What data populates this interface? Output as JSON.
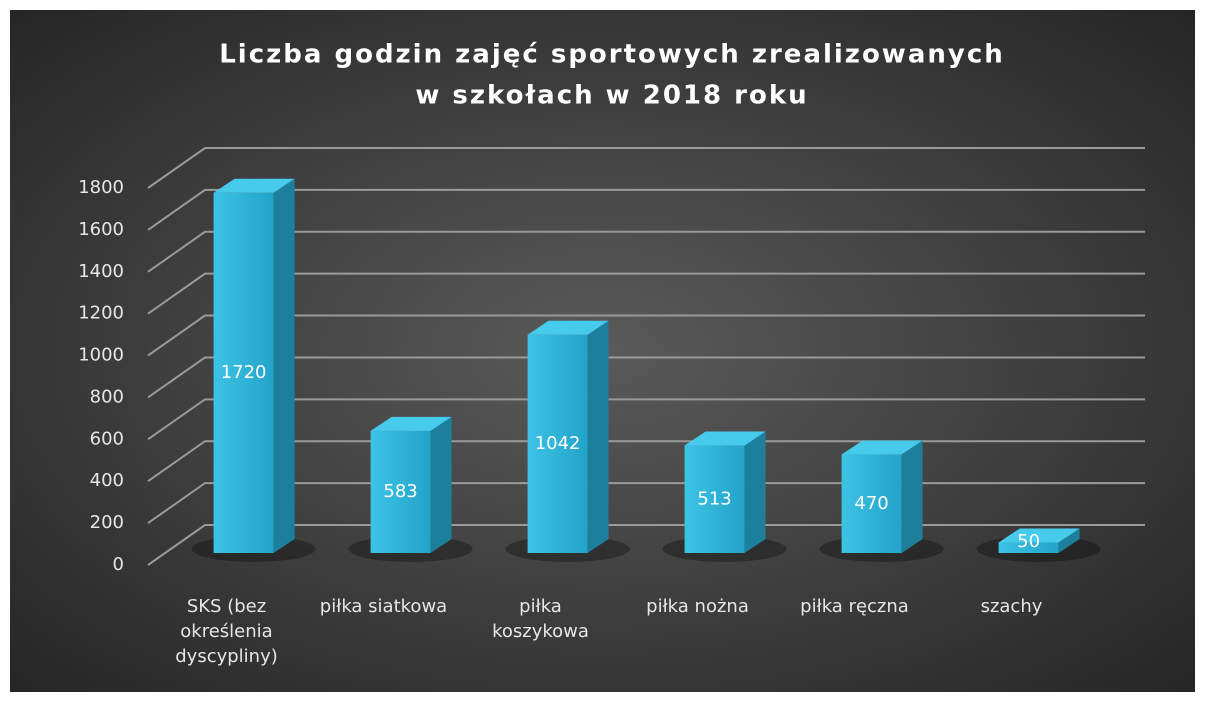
{
  "chart_data": {
    "type": "bar3d",
    "title": [
      "Liczba godzin zajęć sportowych zrealizowanych",
      "w szkołach w 2018 roku"
    ],
    "categories": [
      "SKS (bez określenia dyscypliny)",
      "piłka siatkowa",
      "piłka koszykowa",
      "piłka nożna",
      "piłka ręczna",
      "szachy"
    ],
    "values": [
      1720,
      583,
      1042,
      513,
      470,
      50
    ],
    "color": "#2cb3da",
    "ylim": [
      0,
      1800
    ],
    "yticks": [
      0,
      200,
      400,
      600,
      800,
      1000,
      1200,
      1400,
      1600,
      1800
    ],
    "grid": true
  }
}
